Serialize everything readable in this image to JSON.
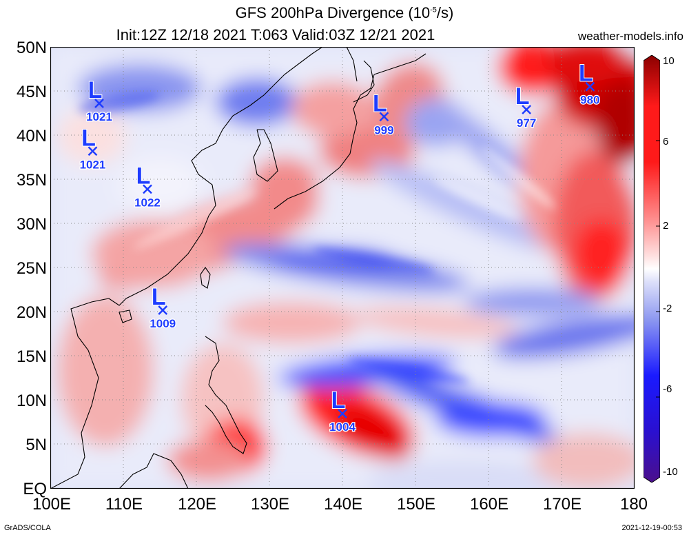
{
  "title": {
    "line1_prefix": "GFS 200hPa Divergence (10",
    "line1_exp": "-5",
    "line1_suffix": "/s)",
    "line2": "Init:12Z 12/18 2021 T:063 Valid:03Z 12/21 2021"
  },
  "site": "weather-models.info",
  "footer": {
    "left": "GrADS/COLA",
    "right": "2021-12-19-00:53"
  },
  "map": {
    "lon_range": [
      100,
      180
    ],
    "lat_range": [
      0,
      50
    ],
    "lat_labels": [
      "50N",
      "45N",
      "40N",
      "35N",
      "30N",
      "25N",
      "20N",
      "15N",
      "10N",
      "5N",
      "EQ"
    ],
    "lon_labels": [
      "100E",
      "110E",
      "120E",
      "130E",
      "140E",
      "150E",
      "160E",
      "170E",
      "180"
    ],
    "grid": "dotted 5° latitude, 10° longitude",
    "lows": [
      {
        "label": "L",
        "pressure": "1021",
        "lon": 106.7,
        "lat": 43.6
      },
      {
        "label": "L",
        "pressure": "1021",
        "lon": 105.8,
        "lat": 38.2
      },
      {
        "label": "L",
        "pressure": "1022",
        "lon": 113.3,
        "lat": 33.9
      },
      {
        "label": "L",
        "pressure": "1009",
        "lon": 115.4,
        "lat": 20.2
      },
      {
        "label": "L",
        "pressure": "999",
        "lon": 145.7,
        "lat": 42.1
      },
      {
        "label": "L",
        "pressure": "977",
        "lon": 165.2,
        "lat": 42.9
      },
      {
        "label": "L",
        "pressure": "980",
        "lon": 173.9,
        "lat": 45.5
      },
      {
        "label": "L",
        "pressure": "1004",
        "lon": 140.0,
        "lat": 8.5
      }
    ],
    "colors": {
      "low_marker": "#1e3cff",
      "coast": "#000000"
    }
  },
  "colorbar": {
    "labels": [
      "10",
      "6",
      "2",
      "-2",
      "-6",
      "-10"
    ],
    "range": [
      -10,
      10
    ],
    "colors": [
      "#4b0f8c",
      "#1a1aff",
      "#6e7bff",
      "#c9cdf7",
      "#ffffff",
      "#f8c6c6",
      "#ff6b6b",
      "#ff1a1a",
      "#8b0000"
    ]
  }
}
